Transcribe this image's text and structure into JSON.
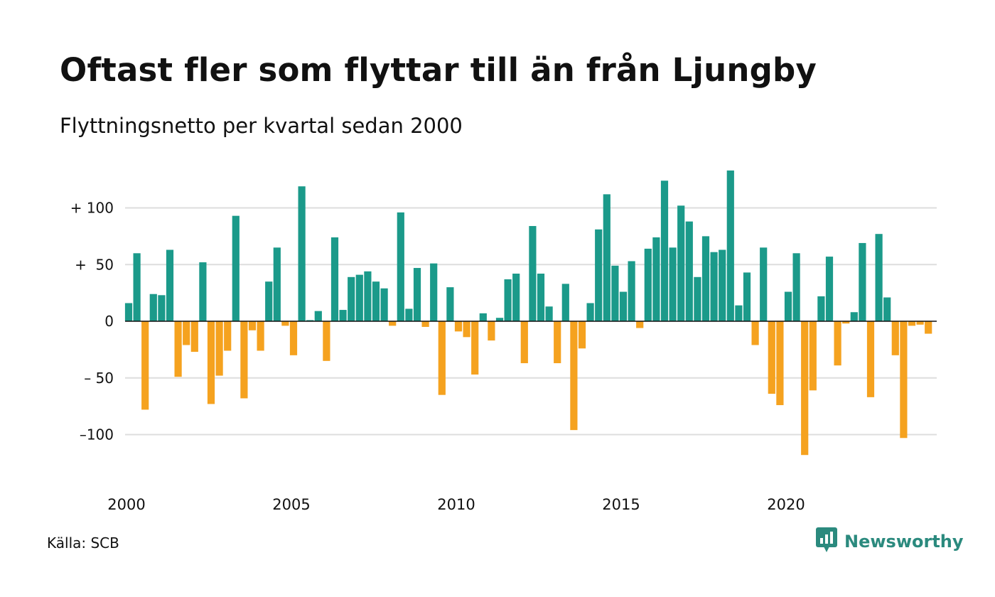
{
  "title": "Oftast fler som flyttar till än från Ljungby",
  "subtitle": "Flyttningsnetto per kvartal sedan 2000",
  "source": "Källa: SCB",
  "brand": {
    "name": "Newsworthy",
    "icon": "newsworthy-logo-icon"
  },
  "colors": {
    "positive": "#1b9a8a",
    "negative": "#f5a21f",
    "grid": "#dddddd",
    "zero_line": "#111111"
  },
  "chart_data": {
    "type": "bar",
    "x_start": "2000-Q1",
    "x_ticks": [
      "2000",
      "2005",
      "2010",
      "2015",
      "2020"
    ],
    "y_ticks": [
      {
        "value": 100,
        "label": "+ 100"
      },
      {
        "value": 50,
        "label": "+  50"
      },
      {
        "value": 0,
        "label": "0"
      },
      {
        "value": -50,
        "label": "– 50"
      },
      {
        "value": -100,
        "label": "–100"
      }
    ],
    "ylim": [
      -135,
      135
    ],
    "grid": true,
    "values": [
      16,
      60,
      -78,
      24,
      23,
      63,
      -49,
      -21,
      -27,
      52,
      -73,
      -48,
      -26,
      93,
      -68,
      -8,
      -26,
      35,
      65,
      -4,
      -30,
      119,
      1,
      9,
      -35,
      74,
      10,
      39,
      41,
      44,
      35,
      29,
      -4,
      96,
      11,
      47,
      -5,
      51,
      -65,
      30,
      -9,
      -14,
      -47,
      7,
      -17,
      3,
      37,
      42,
      -37,
      84,
      42,
      13,
      -37,
      33,
      -96,
      -24,
      16,
      81,
      112,
      49,
      26,
      53,
      -6,
      64,
      74,
      124,
      65,
      102,
      88,
      39,
      75,
      61,
      63,
      133,
      14,
      43,
      -21,
      65,
      -64,
      -74,
      26,
      60,
      -118,
      -61,
      22,
      57,
      -39,
      -2,
      8,
      69,
      -67,
      77,
      21,
      -30,
      -103,
      -4,
      -3,
      -11
    ]
  }
}
